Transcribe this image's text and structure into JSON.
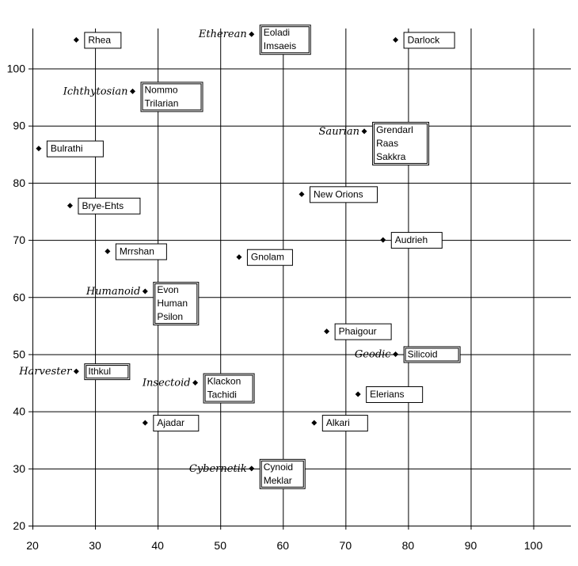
{
  "chart_data": {
    "type": "scatter",
    "title": "",
    "xlabel": "",
    "ylabel": "",
    "xlim": [
      20,
      106
    ],
    "ylim": [
      20,
      107
    ],
    "x_ticks": [
      20,
      30,
      40,
      50,
      60,
      70,
      80,
      90,
      100
    ],
    "y_ticks": [
      20,
      30,
      40,
      50,
      60,
      70,
      80,
      90,
      100
    ],
    "grid": true,
    "marker": "diamond",
    "points": [
      {
        "x": 27,
        "y": 105,
        "lines": [
          "Rhea"
        ],
        "group": ""
      },
      {
        "x": 55,
        "y": 106,
        "lines": [
          "Eoladi",
          "Imsaeis"
        ],
        "group": "Etherean"
      },
      {
        "x": 78,
        "y": 105,
        "lines": [
          "Darlock"
        ],
        "group": ""
      },
      {
        "x": 36,
        "y": 96,
        "lines": [
          "Nommo",
          "Trilarian"
        ],
        "group": "Ichthytosian"
      },
      {
        "x": 73,
        "y": 89,
        "lines": [
          "Grendarl",
          "Raas",
          "Sakkra"
        ],
        "group": "Saurian"
      },
      {
        "x": 21,
        "y": 86,
        "lines": [
          "Bulrathi"
        ],
        "group": ""
      },
      {
        "x": 63,
        "y": 78,
        "lines": [
          "New Orions"
        ],
        "group": ""
      },
      {
        "x": 26,
        "y": 76,
        "lines": [
          "Brye-Ehts"
        ],
        "group": ""
      },
      {
        "x": 76,
        "y": 70,
        "lines": [
          "Audrieh"
        ],
        "group": ""
      },
      {
        "x": 32,
        "y": 68,
        "lines": [
          "Mrrshan"
        ],
        "group": ""
      },
      {
        "x": 53,
        "y": 67,
        "lines": [
          "Gnolam"
        ],
        "group": ""
      },
      {
        "x": 38,
        "y": 61,
        "lines": [
          "Evon",
          "Human",
          "Psilon"
        ],
        "group": "Humanoid"
      },
      {
        "x": 67,
        "y": 54,
        "lines": [
          "Phaigour"
        ],
        "group": ""
      },
      {
        "x": 78,
        "y": 50,
        "lines": [
          "Silicoid"
        ],
        "group": "Geodic"
      },
      {
        "x": 27,
        "y": 47,
        "lines": [
          "Ithkul"
        ],
        "group": "Harvester"
      },
      {
        "x": 46,
        "y": 45,
        "lines": [
          "Klackon",
          "Tachidi"
        ],
        "group": "Insectoid"
      },
      {
        "x": 72,
        "y": 43,
        "lines": [
          "Elerians"
        ],
        "group": ""
      },
      {
        "x": 38,
        "y": 38,
        "lines": [
          "Ajadar"
        ],
        "group": ""
      },
      {
        "x": 65,
        "y": 38,
        "lines": [
          "Alkari"
        ],
        "group": ""
      },
      {
        "x": 55,
        "y": 30,
        "lines": [
          "Cynoid",
          "Meklar"
        ],
        "group": "Cybernetik"
      }
    ]
  }
}
